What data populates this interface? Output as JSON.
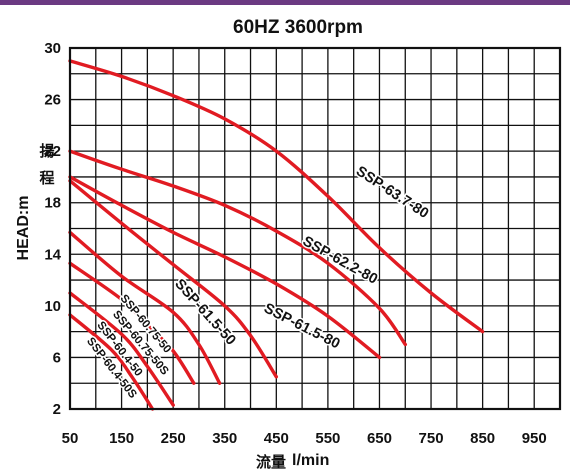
{
  "chart_data": {
    "type": "line",
    "title": "60HZ 3600rpm",
    "ylabel": "HEAD:m",
    "ylabel_cjk": [
      "揚",
      "程"
    ],
    "xlabel_cjk": "流量",
    "xlabel_unit": "l/min",
    "xlim": [
      50,
      1000
    ],
    "ylim": [
      2,
      30
    ],
    "xticks": [
      50,
      150,
      250,
      350,
      450,
      550,
      650,
      750,
      850,
      950
    ],
    "yticks": [
      2,
      6,
      10,
      14,
      18,
      22,
      26,
      30
    ],
    "grid": true,
    "series": [
      {
        "name": "SSP-63.7-80",
        "x": [
          50,
          150,
          250,
          350,
          450,
          550,
          650,
          750,
          850
        ],
        "y": [
          29,
          27.8,
          26.3,
          24.5,
          22,
          18.5,
          14.5,
          11,
          8
        ]
      },
      {
        "name": "SSP-62.2-80",
        "x": [
          50,
          150,
          250,
          350,
          450,
          550,
          650,
          700
        ],
        "y": [
          22,
          20.6,
          19.3,
          17.8,
          15.8,
          13.3,
          9.8,
          7
        ]
      },
      {
        "name": "SSP-61.5-80",
        "x": [
          50,
          150,
          250,
          350,
          450,
          550,
          650
        ],
        "y": [
          20,
          17.8,
          15.7,
          13.8,
          11.7,
          9.2,
          6
        ]
      },
      {
        "name": "SSP-61.5-50",
        "x": [
          50,
          150,
          250,
          350,
          400,
          450
        ],
        "y": [
          19.7,
          16.4,
          13.2,
          10,
          7.7,
          4.5
        ]
      },
      {
        "name": "SSP-60.75-50",
        "x": [
          50,
          150,
          250,
          300,
          340
        ],
        "y": [
          15.7,
          12.3,
          9.5,
          7,
          4
        ]
      },
      {
        "name": "SSP-60.75-50S",
        "x": [
          50,
          150,
          200,
          250,
          290
        ],
        "y": [
          13.3,
          10.5,
          8.5,
          6.5,
          4
        ]
      },
      {
        "name": "SSP-60.4-50",
        "x": [
          50,
          150,
          200,
          250
        ],
        "y": [
          11,
          7.8,
          5.3,
          2.3
        ]
      },
      {
        "name": "SSP-60.4-50S",
        "x": [
          50,
          130,
          170,
          210
        ],
        "y": [
          9.3,
          6.6,
          4.5,
          2
        ]
      }
    ],
    "curve_labels": [
      "SSP-63.7-80",
      "SSP-62.2-80",
      "SSP-61.5-80",
      "SSP-61.5-50",
      "SSP-60.75-50",
      "SSP-60.75-50S",
      "SSP-60.4-50",
      "SSP-60.4-50S"
    ],
    "line_color": "#e11b22",
    "top_bar_color": "#6b3a82"
  }
}
